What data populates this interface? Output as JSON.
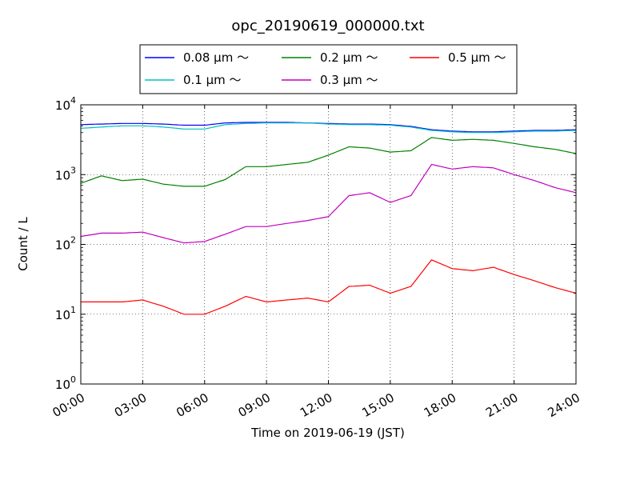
{
  "chart_data": {
    "type": "line",
    "title": "opc_20190619_000000.txt",
    "xlabel": "Time on 2019-06-19 (JST)",
    "ylabel": "Count / L",
    "yscale": "log",
    "ylim": [
      1,
      10000
    ],
    "xlim": [
      "00:00",
      "24:00"
    ],
    "x_ticks": [
      "00:00",
      "03:00",
      "06:00",
      "09:00",
      "12:00",
      "15:00",
      "18:00",
      "21:00",
      "24:00"
    ],
    "y_ticks": [
      {
        "value": 1,
        "base": "10",
        "exp": "0"
      },
      {
        "value": 10,
        "base": "10",
        "exp": "1"
      },
      {
        "value": 100,
        "base": "10",
        "exp": "2"
      },
      {
        "value": 1000,
        "base": "10",
        "exp": "3"
      },
      {
        "value": 10000,
        "base": "10",
        "exp": "4"
      }
    ],
    "grid": true,
    "legend_position": "top-center",
    "x": [
      "00:00",
      "01:00",
      "02:00",
      "03:00",
      "04:00",
      "05:00",
      "06:00",
      "07:00",
      "08:00",
      "09:00",
      "10:00",
      "11:00",
      "12:00",
      "13:00",
      "14:00",
      "15:00",
      "16:00",
      "17:00",
      "18:00",
      "19:00",
      "20:00",
      "21:00",
      "22:00",
      "23:00",
      "24:00"
    ],
    "series": [
      {
        "name": "0.08 μm ～",
        "color": "#0000ff",
        "values": [
          5200,
          5300,
          5400,
          5400,
          5300,
          5100,
          5100,
          5500,
          5600,
          5600,
          5600,
          5500,
          5400,
          5300,
          5300,
          5200,
          4900,
          4400,
          4200,
          4100,
          4100,
          4200,
          4300,
          4300,
          4400
        ]
      },
      {
        "name": "0.1 μm ～",
        "color": "#00bfbf",
        "values": [
          4600,
          4800,
          5000,
          5000,
          4800,
          4500,
          4500,
          5200,
          5400,
          5500,
          5500,
          5500,
          5300,
          5200,
          5200,
          5100,
          4800,
          4300,
          4100,
          4000,
          4000,
          4100,
          4200,
          4200,
          4300
        ]
      },
      {
        "name": "0.2 μm ～",
        "color": "#008000",
        "values": [
          750,
          960,
          820,
          860,
          730,
          680,
          680,
          850,
          1300,
          1300,
          1400,
          1500,
          1900,
          2500,
          2400,
          2100,
          2200,
          3400,
          3100,
          3200,
          3100,
          2800,
          2500,
          2300,
          2000
        ]
      },
      {
        "name": "0.3 μm ～",
        "color": "#bf00bf",
        "values": [
          130,
          145,
          145,
          150,
          125,
          105,
          110,
          140,
          180,
          180,
          200,
          220,
          250,
          500,
          550,
          400,
          500,
          1400,
          1200,
          1300,
          1250,
          1000,
          820,
          650,
          550
        ]
      },
      {
        "name": "0.5 μm ～",
        "color": "#ff0000",
        "values": [
          15,
          15,
          15,
          16,
          13,
          10,
          10,
          13,
          18,
          15,
          16,
          17,
          15,
          25,
          26,
          20,
          25,
          60,
          45,
          42,
          47,
          37,
          30,
          24,
          20
        ]
      }
    ]
  }
}
